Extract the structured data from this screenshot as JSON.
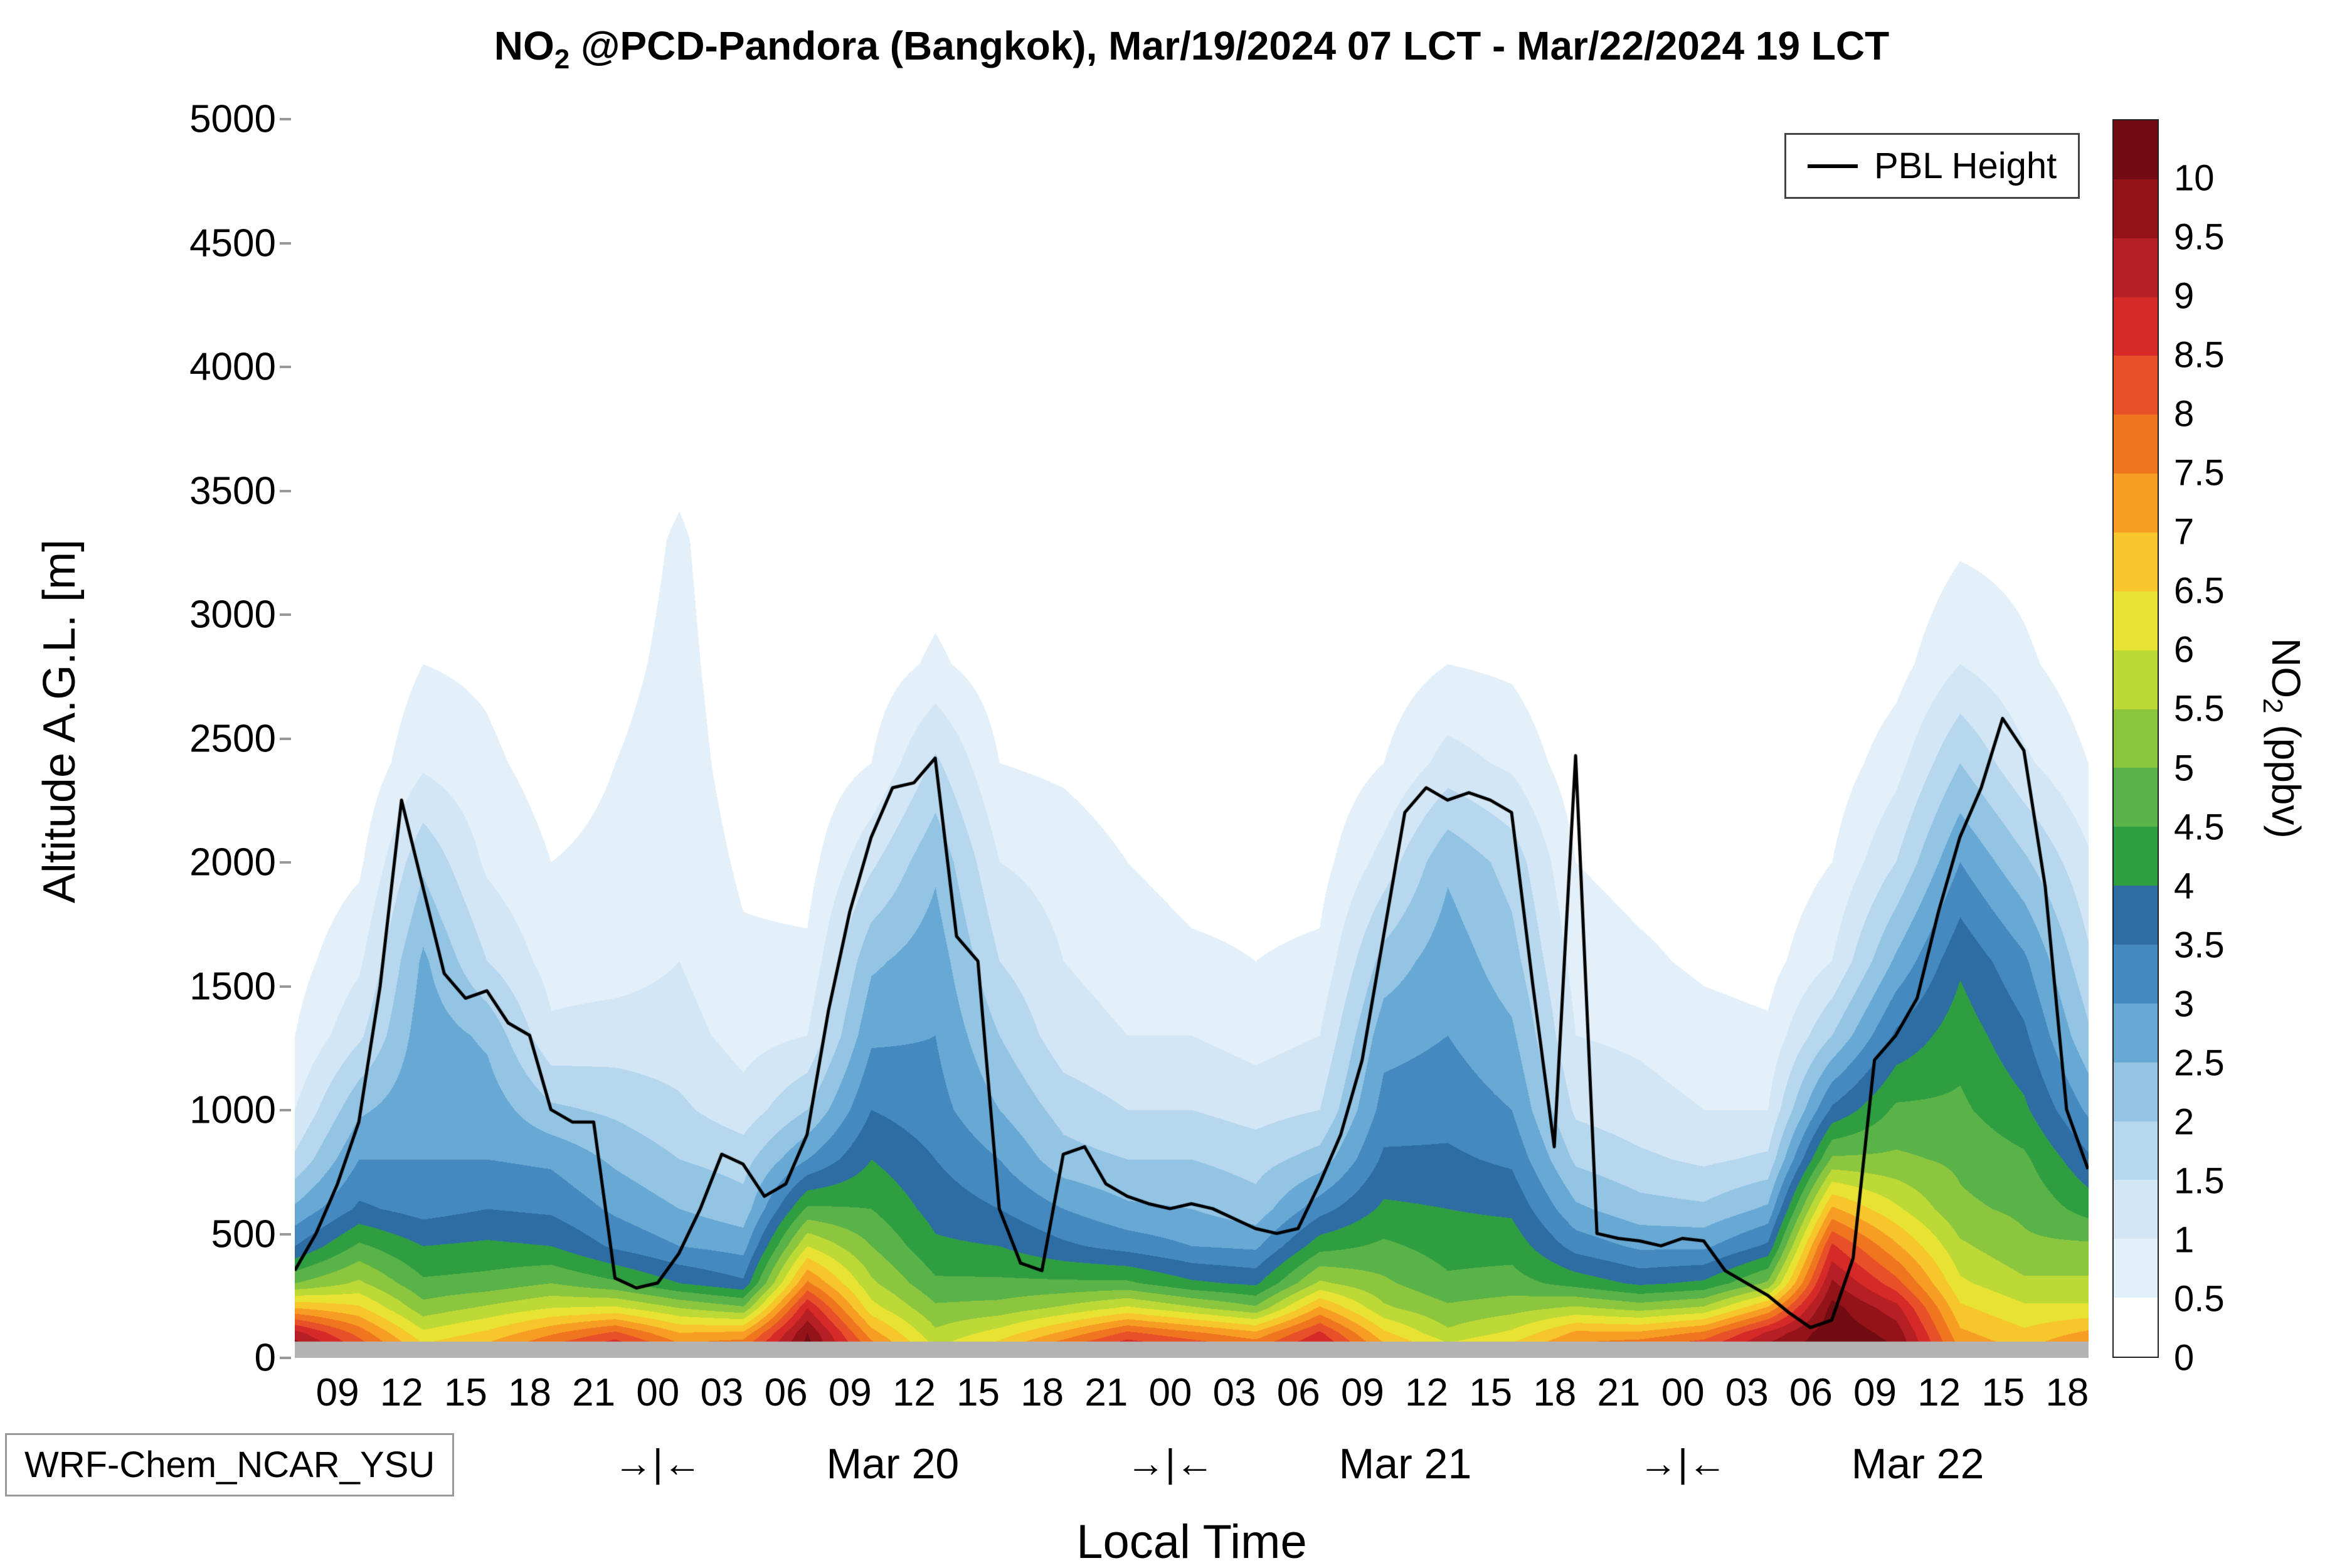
{
  "title": {
    "prefix": "NO",
    "sub": "2",
    "rest": " @PCD-Pandora (Bangkok), Mar/19/2024 07 LCT - Mar/22/2024 19 LCT"
  },
  "axes": {
    "ylabel": "Altitude A.G.L. [m]",
    "xlabel": "Local Time",
    "x_range_hours": [
      7,
      91
    ],
    "y_range_m": [
      0,
      5000
    ],
    "y_ticks": [
      0,
      500,
      1000,
      1500,
      2000,
      2500,
      3000,
      3500,
      4000,
      4500,
      5000
    ],
    "x_tick_hours": [
      9,
      12,
      15,
      18,
      21,
      24,
      27,
      30,
      33,
      36,
      39,
      42,
      45,
      48,
      51,
      54,
      57,
      60,
      63,
      66,
      69,
      72,
      75,
      78,
      81,
      84,
      87,
      90
    ],
    "x_tick_labels": [
      "09",
      "12",
      "15",
      "18",
      "21",
      "00",
      "03",
      "06",
      "09",
      "12",
      "15",
      "18",
      "21",
      "00",
      "03",
      "06",
      "09",
      "12",
      "15",
      "18",
      "21",
      "00",
      "03",
      "06",
      "09",
      "12",
      "15",
      "18"
    ]
  },
  "legend": {
    "label": "PBL Height",
    "line_color": "#000000"
  },
  "colorbar": {
    "label_prefix": "NO",
    "label_sub": "2",
    "label_rest": " (ppbv)",
    "vmin": 0,
    "vmax": 10.5,
    "bin_size": 0.5,
    "ticks": [
      0,
      0.5,
      1,
      1.5,
      2,
      2.5,
      3,
      3.5,
      4,
      4.5,
      5,
      5.5,
      6,
      6.5,
      7,
      7.5,
      8,
      8.5,
      9,
      9.5,
      10
    ],
    "levels": [
      "#ffffff",
      "#e3eff9",
      "#d2e6f5",
      "#b7d7ee",
      "#93c4e4",
      "#68a8d4",
      "#4489c0",
      "#2e6da4",
      "#2f9e41",
      "#5ab348",
      "#8cc63f",
      "#bcd936",
      "#e8e332",
      "#f6c62b",
      "#f79d23",
      "#f0751f",
      "#e8502a",
      "#d62a28",
      "#b61f24",
      "#941319",
      "#700c12"
    ]
  },
  "annotations": {
    "model_label": "WRF-Chem_NCAR_YSU",
    "day_boundary_marker": "→|←",
    "boundary_hours": [
      24,
      48,
      72
    ],
    "day_labels": [
      {
        "text": "Mar 20",
        "hour": 35
      },
      {
        "text": "Mar 21",
        "hour": 59
      },
      {
        "text": "Mar 22",
        "hour": 83
      }
    ],
    "surface_bar_color": "#b3b3b3"
  },
  "chart_data": {
    "type": "heatmap",
    "x_hours": [
      7,
      10,
      13,
      16,
      19,
      22,
      25,
      28,
      31,
      34,
      37,
      40,
      43,
      46,
      49,
      52,
      55,
      58,
      61,
      64,
      67,
      70,
      73,
      76,
      79,
      82,
      85,
      88,
      91
    ],
    "y_alts": [
      0,
      100,
      200,
      300,
      450,
      600,
      800,
      1000,
      1300,
      1600,
      2000,
      2400,
      2800,
      3300,
      4000,
      5000
    ],
    "no2_ppbv": [
      [
        10.3,
        9.2,
        7.0,
        5.0,
        3.5,
        2.6,
        1.6,
        1.0,
        0.5,
        0.3,
        0.1,
        0,
        0,
        0,
        0,
        0
      ],
      [
        8.8,
        7.8,
        6.6,
        5.6,
        4.6,
        3.6,
        3.0,
        2.4,
        1.4,
        0.9,
        0.4,
        0.1,
        0,
        0,
        0,
        0
      ],
      [
        7.0,
        6.1,
        5.2,
        4.6,
        4.0,
        3.3,
        3.0,
        2.9,
        2.8,
        2.6,
        1.9,
        0.9,
        0.5,
        0.1,
        0,
        0
      ],
      [
        7.6,
        6.6,
        5.6,
        4.7,
        4.1,
        3.5,
        3.0,
        2.8,
        2.4,
        1.5,
        0.9,
        0.6,
        0.4,
        0.1,
        0,
        0
      ],
      [
        8.6,
        7.4,
        6.0,
        5.0,
        4.0,
        3.4,
        2.9,
        2.1,
        1.1,
        0.8,
        0.5,
        0.3,
        0.1,
        0,
        0,
        0
      ],
      [
        9.6,
        8.1,
        6.1,
        4.6,
        3.4,
        2.9,
        2.4,
        1.9,
        1.2,
        0.8,
        0.6,
        0.5,
        0.3,
        0.1,
        0,
        0
      ],
      [
        8.2,
        7.0,
        5.5,
        4.0,
        3.0,
        2.5,
        2.0,
        1.6,
        1.2,
        1.0,
        0.9,
        0.8,
        0.7,
        0.6,
        0,
        0
      ],
      [
        8.6,
        7.1,
        5.1,
        3.6,
        2.8,
        2.2,
        1.8,
        1.2,
        0.8,
        0.6,
        0.4,
        0.2,
        0.1,
        0,
        0,
        0
      ],
      [
        10.4,
        10.0,
        9.0,
        7.6,
        6.0,
        4.6,
        3.0,
        2.0,
        1.0,
        0.6,
        0.3,
        0.1,
        0,
        0,
        0,
        0
      ],
      [
        8.2,
        7.2,
        6.2,
        5.6,
        5.0,
        4.5,
        4.0,
        3.5,
        2.9,
        2.4,
        1.4,
        0.5,
        0.2,
        0,
        0,
        0
      ],
      [
        6.2,
        5.6,
        5.1,
        4.6,
        4.1,
        3.8,
        3.5,
        3.2,
        3.0,
        2.8,
        2.4,
        1.6,
        0.6,
        0.2,
        0,
        0
      ],
      [
        7.2,
        6.2,
        5.2,
        4.6,
        4.0,
        3.5,
        3.0,
        2.5,
        2.0,
        1.5,
        1.0,
        0.5,
        0.2,
        0,
        0,
        0
      ],
      [
        8.6,
        7.1,
        5.6,
        4.6,
        3.6,
        3.0,
        2.2,
        1.8,
        1.2,
        1.0,
        0.8,
        0.4,
        0.1,
        0,
        0,
        0
      ],
      [
        9.6,
        8.1,
        6.1,
        4.6,
        3.3,
        2.6,
        2.0,
        1.5,
        1.0,
        0.8,
        0.5,
        0.2,
        0.1,
        0,
        0,
        0
      ],
      [
        9.1,
        7.6,
        5.6,
        4.1,
        3.0,
        2.5,
        2.0,
        1.5,
        1.0,
        0.6,
        0.3,
        0.1,
        0,
        0,
        0,
        0
      ],
      [
        8.6,
        7.1,
        5.1,
        3.9,
        2.9,
        2.2,
        1.8,
        1.3,
        0.8,
        0.5,
        0.3,
        0.1,
        0,
        0,
        0,
        0
      ],
      [
        9.6,
        8.6,
        7.1,
        5.6,
        4.3,
        3.3,
        2.2,
        1.5,
        1.0,
        0.6,
        0.3,
        0.1,
        0,
        0,
        0,
        0
      ],
      [
        7.6,
        6.6,
        5.6,
        5.1,
        4.6,
        4.1,
        3.6,
        3.2,
        2.8,
        2.2,
        1.2,
        0.5,
        0.2,
        0,
        0,
        0
      ],
      [
        6.6,
        5.6,
        5.1,
        4.6,
        4.3,
        4.0,
        3.6,
        3.3,
        3.0,
        2.8,
        2.4,
        1.2,
        0.5,
        0.1,
        0,
        0
      ],
      [
        7.1,
        6.1,
        5.3,
        4.7,
        4.3,
        3.9,
        3.4,
        3.0,
        2.6,
        2.2,
        1.8,
        0.9,
        0.4,
        0,
        0,
        0
      ],
      [
        8.1,
        7.1,
        5.6,
        4.3,
        3.3,
        2.6,
        1.9,
        1.4,
        1.0,
        0.8,
        0.5,
        0.2,
        0,
        0,
        0,
        0
      ],
      [
        8.6,
        7.1,
        5.3,
        3.9,
        2.9,
        2.2,
        1.6,
        1.2,
        0.9,
        0.6,
        0.3,
        0.1,
        0,
        0,
        0,
        0
      ],
      [
        9.1,
        7.6,
        5.6,
        4.1,
        2.9,
        2.1,
        1.4,
        1.0,
        0.7,
        0.4,
        0.2,
        0,
        0,
        0,
        0,
        0
      ],
      [
        10.1,
        9.1,
        7.1,
        5.1,
        3.6,
        2.6,
        1.6,
        1.0,
        0.6,
        0.3,
        0.1,
        0,
        0,
        0,
        0,
        0
      ],
      [
        10.4,
        10.4,
        10.2,
        9.6,
        8.6,
        7.1,
        5.1,
        3.6,
        2.0,
        1.0,
        0.5,
        0.2,
        0,
        0,
        0,
        0
      ],
      [
        10.2,
        9.8,
        9.2,
        8.2,
        7.1,
        6.1,
        5.1,
        4.6,
        3.6,
        2.6,
        1.5,
        0.8,
        0.3,
        0,
        0,
        0
      ],
      [
        7.6,
        7.1,
        6.6,
        6.1,
        5.6,
        5.1,
        4.9,
        4.6,
        4.3,
        3.9,
        3.0,
        2.0,
        1.0,
        0.4,
        0,
        0
      ],
      [
        7.1,
        6.6,
        6.1,
        5.6,
        5.1,
        4.9,
        4.6,
        4.1,
        3.6,
        3.1,
        2.1,
        1.1,
        0.6,
        0.3,
        0,
        0
      ],
      [
        8.1,
        7.1,
        6.1,
        5.6,
        5.1,
        4.3,
        3.6,
        2.9,
        2.1,
        1.6,
        1.1,
        0.5,
        0.2,
        0,
        0,
        0
      ]
    ],
    "pbl": {
      "start_hour": 7,
      "step_hours": 1,
      "height_m": [
        350,
        500,
        700,
        950,
        1500,
        2250,
        1900,
        1550,
        1450,
        1480,
        1350,
        1300,
        1000,
        950,
        950,
        320,
        280,
        300,
        420,
        600,
        820,
        780,
        650,
        700,
        900,
        1400,
        1800,
        2100,
        2300,
        2320,
        2420,
        1700,
        1600,
        600,
        380,
        350,
        820,
        850,
        700,
        650,
        620,
        600,
        620,
        600,
        560,
        520,
        500,
        520,
        700,
        900,
        1200,
        1700,
        2200,
        2300,
        2250,
        2280,
        2250,
        2200,
        1500,
        850,
        2430,
        500,
        480,
        470,
        450,
        480,
        470,
        350,
        300,
        250,
        180,
        120,
        150,
        400,
        1200,
        1300,
        1450,
        1800,
        2100,
        2300,
        2580,
        2450,
        1900,
        1000,
        760
      ]
    }
  }
}
